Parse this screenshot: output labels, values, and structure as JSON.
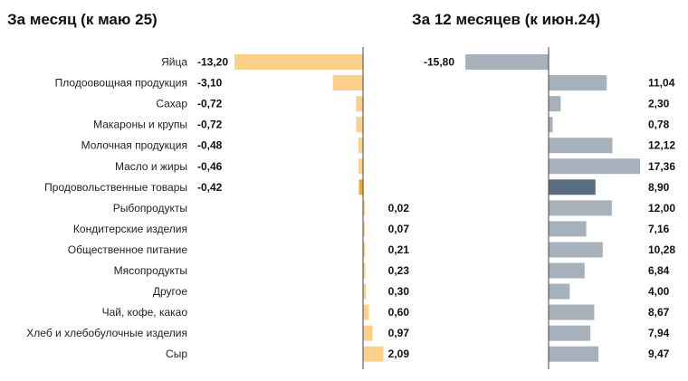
{
  "colors": {
    "month_bar": "#FCD18B",
    "month_bar_highlight": "#F3A72F",
    "year_bar": "#A7B1BC",
    "year_bar_highlight": "#5A6E82",
    "axis": "#444444"
  },
  "chart_data": {
    "type": "bar",
    "orientation": "horizontal",
    "categories": [
      "Яйца",
      "Плодоовощная продукция",
      "Сахар",
      "Макароны и крупы",
      "Молочная продукция",
      "Масло и жиры",
      "Продовольственные товары",
      "Рыбопродукты",
      "Кондитерские изделия",
      "Общественное питание",
      "Мясопродукты",
      "Другое",
      "Чай, кофе, какао",
      "Хлеб и хлебобулочные изделия",
      "Сыр"
    ],
    "highlight_category": "Продовольственные товары",
    "panels": [
      {
        "title": "За месяц (к маю 25)",
        "values": [
          -13.2,
          -3.1,
          -0.72,
          -0.72,
          -0.48,
          -0.46,
          -0.42,
          0.02,
          0.07,
          0.21,
          0.23,
          0.3,
          0.6,
          0.97,
          2.09
        ],
        "labels": [
          "-13,20",
          "-3,10",
          "-0,72",
          "-0,72",
          "-0,48",
          "-0,46",
          "-0,42",
          "0,02",
          "0,07",
          "0,21",
          "0,23",
          "0,30",
          "0,60",
          "0,97",
          "2,09"
        ],
        "xlim": [
          -13.2,
          2.09
        ]
      },
      {
        "title": "За 12 месяцев (к июн.24)",
        "values": [
          -15.8,
          11.04,
          2.3,
          0.78,
          12.12,
          17.36,
          8.9,
          12.0,
          7.16,
          10.28,
          6.84,
          4.0,
          8.67,
          7.94,
          9.47
        ],
        "labels": [
          "-15,80",
          "11,04",
          "2,30",
          "0,78",
          "12,12",
          "17,36",
          "8,90",
          "12,00",
          "7,16",
          "10,28",
          "6,84",
          "4,00",
          "8,67",
          "7,94",
          "9,47"
        ],
        "xlim": [
          -15.8,
          17.36
        ]
      }
    ],
    "grid": false,
    "legend": "none"
  }
}
